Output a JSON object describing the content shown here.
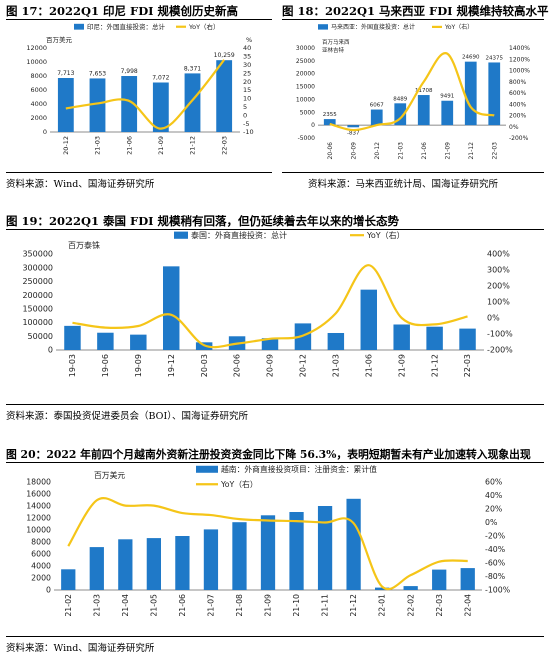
{
  "colors": {
    "bar": "#1f79c8",
    "line": "#f5c518",
    "axis": "#666666",
    "rule": "#000000"
  },
  "panels": [
    {
      "title": "图 17：2022Q1 印尼 FDI 规模创历史新高",
      "source": "资料来源：Wind、国海证券研究所",
      "chart_data": {
        "type": "bar",
        "unit": "百万美元",
        "y2_unit": "%",
        "categories": [
          "20-12",
          "21-03",
          "21-06",
          "21-09",
          "21-12",
          "22-03"
        ],
        "series": [
          {
            "name": "印尼：外国直接投资：总计",
            "type": "bar",
            "axis": "left",
            "values": [
              7713,
              7653,
              7998,
              7072,
              8371,
              10259
            ],
            "labels": [
              "7,713",
              "7,653",
              "7,998",
              "7,072",
              "8,371",
              "10,259"
            ]
          },
          {
            "name": "YoY（右）",
            "type": "line",
            "axis": "right",
            "values": [
              4,
              7,
              8.5,
              -8,
              9,
              33
            ]
          }
        ],
        "ylim": [
          0,
          12000
        ],
        "yticks": [
          0,
          2000,
          4000,
          6000,
          8000,
          10000,
          12000
        ],
        "ytick_labels": [
          "0",
          "2000",
          "4000",
          "6000",
          "8000",
          "10000",
          "12000"
        ],
        "y2lim": [
          -10,
          40
        ],
        "y2ticks": [
          -10,
          -5,
          0,
          5,
          10,
          15,
          20,
          25,
          30,
          35,
          40
        ],
        "y2tick_labels": [
          "-10",
          "-5",
          "0",
          "5",
          "10",
          "15",
          "20",
          "25",
          "30",
          "35",
          "40"
        ],
        "legend": "top"
      }
    },
    {
      "title": "图 18：2022Q1 马来西亚 FDI 规模维持较高水平",
      "source": "资料来源：马来西亚统计局、国海证券研究所",
      "chart_data": {
        "type": "bar",
        "unit": "百万马来西亚林吉特",
        "categories": [
          "20-06",
          "20-09",
          "20-12",
          "21-03",
          "21-06",
          "21-09",
          "21-12",
          "22-03"
        ],
        "series": [
          {
            "name": "马来西亚：外国直接投资：总计",
            "type": "bar",
            "axis": "left",
            "values": [
              2355,
              -837,
              6067,
              8489,
              11708,
              9491,
              24690,
              24375
            ],
            "labels": [
              "2355",
              "-837",
              "6067",
              "8489",
              "11708",
              "9491",
              "24690",
              "24375"
            ]
          },
          {
            "name": "YoY（右）",
            "type": "line",
            "axis": "right",
            "values": [
              50,
              -60,
              30,
              150,
              800,
              1300,
              350,
              200
            ]
          }
        ],
        "ylim": [
          -5000,
          30000
        ],
        "yticks": [
          -5000,
          0,
          5000,
          10000,
          15000,
          20000,
          25000,
          30000
        ],
        "ytick_labels": [
          "-5000",
          "0",
          "5000",
          "10000",
          "15000",
          "20000",
          "25000",
          "30000"
        ],
        "y2lim": [
          -200,
          1400
        ],
        "y2ticks": [
          -200,
          0,
          200,
          400,
          600,
          800,
          1000,
          1200,
          1400
        ],
        "y2tick_labels": [
          "-200%",
          "0%",
          "200%",
          "400%",
          "600%",
          "800%",
          "1000%",
          "1200%",
          "1400%"
        ],
        "legend": "top"
      }
    },
    {
      "title": "图 19：2022Q1 泰国 FDI 规模稍有回落，但仍延续着去年以来的增长态势",
      "source": "资料来源：泰国投资促进委员会（BOI）、国海证券研究所",
      "chart_data": {
        "type": "bar",
        "unit": "百万泰铢",
        "categories": [
          "19-03",
          "19-06",
          "19-09",
          "19-12",
          "20-03",
          "20-06",
          "20-09",
          "20-12",
          "21-03",
          "21-06",
          "21-09",
          "21-12",
          "22-03"
        ],
        "series": [
          {
            "name": "泰国：外商直接投资：总计",
            "type": "bar",
            "axis": "left",
            "values": [
              88000,
              63000,
              56000,
              305000,
              28000,
              50000,
              43000,
              97000,
              62000,
              220000,
              93000,
              85000,
              78000
            ]
          },
          {
            "name": "YoY（右）",
            "type": "line",
            "axis": "right",
            "values": [
              -30,
              -60,
              -50,
              20,
              -170,
              -160,
              -130,
              -110,
              30,
              330,
              0,
              -40,
              10
            ]
          }
        ],
        "ylim": [
          0,
          350000
        ],
        "yticks": [
          0,
          50000,
          100000,
          150000,
          200000,
          250000,
          300000,
          350000
        ],
        "ytick_labels": [
          "0",
          "50000",
          "100000",
          "150000",
          "200000",
          "250000",
          "300000",
          "350000"
        ],
        "y2lim": [
          -200,
          400
        ],
        "y2ticks": [
          -200,
          -100,
          0,
          100,
          200,
          300,
          400
        ],
        "y2tick_labels": [
          "-200%",
          "-100%",
          "0%",
          "100%",
          "200%",
          "300%",
          "400%"
        ],
        "legend": "top"
      }
    },
    {
      "title": "图 20：2022 年前四个月越南外资新注册投资资金同比下降 56.3%，表明短期暂未有产业加速转入现象出现",
      "source": "资料来源：Wind、国海证券研究所",
      "chart_data": {
        "type": "bar",
        "unit": "百万美元",
        "categories": [
          "21-02",
          "21-03",
          "21-04",
          "21-05",
          "21-06",
          "21-07",
          "21-08",
          "21-09",
          "21-10",
          "21-11",
          "21-12",
          "22-01",
          "22-02",
          "22-03",
          "22-04"
        ],
        "series": [
          {
            "name": "越南：外商直接投资项目：注册资金：累计值",
            "type": "bar",
            "axis": "left",
            "values": [
              3450,
              7150,
              8450,
              8650,
              9000,
              10100,
              11300,
              12450,
              13000,
              14000,
              15200,
              400,
              650,
              3400,
              3650
            ]
          },
          {
            "name": "YoY（右）",
            "type": "line",
            "axis": "right",
            "values": [
              -35,
              33,
              25,
              25,
              14,
              11,
              5,
              3,
              2,
              0,
              -1,
              -95,
              -78,
              -58,
              -57
            ]
          }
        ],
        "ylim": [
          0,
          18000
        ],
        "yticks": [
          0,
          2000,
          4000,
          6000,
          8000,
          10000,
          12000,
          14000,
          16000,
          18000
        ],
        "ytick_labels": [
          "0",
          "2000",
          "4000",
          "6000",
          "8000",
          "10000",
          "12000",
          "14000",
          "16000",
          "18000"
        ],
        "y2lim": [
          -100,
          60
        ],
        "y2ticks": [
          -100,
          -80,
          -60,
          -40,
          -20,
          0,
          20,
          40,
          60
        ],
        "y2tick_labels": [
          "-100%",
          "-80%",
          "-60%",
          "-40%",
          "-20%",
          "0%",
          "20%",
          "40%",
          "60%"
        ],
        "legend": "top"
      }
    }
  ]
}
